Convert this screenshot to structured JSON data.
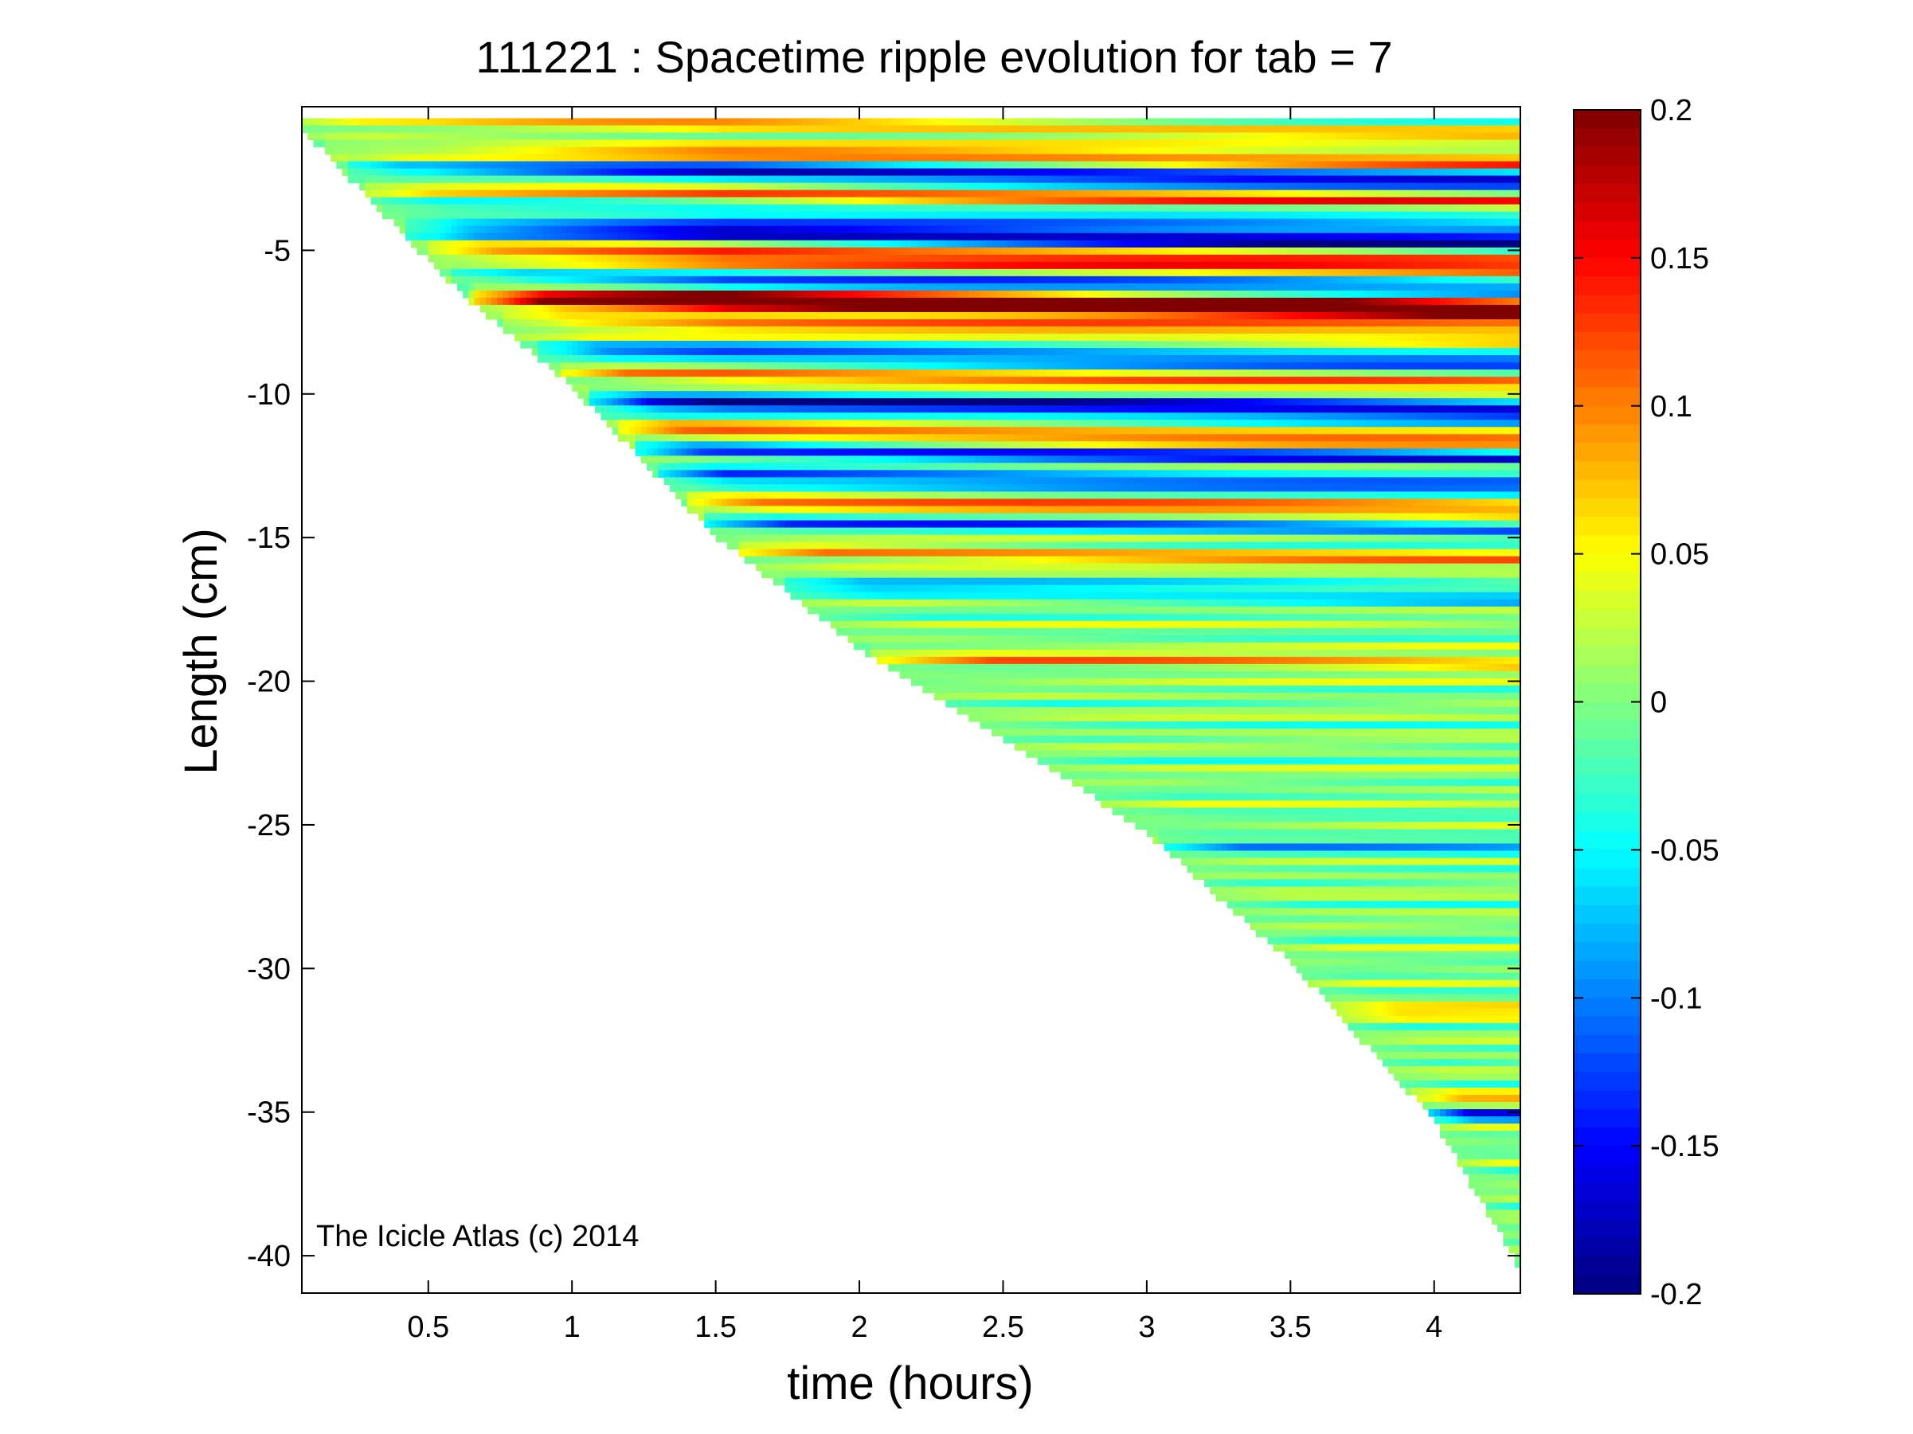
{
  "chart_data": {
    "type": "heatmap",
    "title": "111221 : Spacetime ripple evolution for tab = 7",
    "xlabel": "time (hours)",
    "ylabel": "Length (cm)",
    "annotation": "The Icicle Atlas (c) 2014",
    "xlim": [
      0.06,
      4.3
    ],
    "ylim": [
      -41.3,
      0
    ],
    "xticks": [
      0.5,
      1,
      1.5,
      2,
      2.5,
      3,
      3.5,
      4
    ],
    "xtick_labels": [
      "0.5",
      "1",
      "1.5",
      "2",
      "2.5",
      "3",
      "3.5",
      "4"
    ],
    "yticks": [
      -5,
      -10,
      -15,
      -20,
      -25,
      -30,
      -35,
      -40
    ],
    "ytick_labels": [
      "-5",
      "-10",
      "-15",
      "-20",
      "-25",
      "-30",
      "-35",
      "-40"
    ],
    "colorbar": {
      "colormap": "jet",
      "clim": [
        -0.2,
        0.2
      ],
      "ticks": [
        0.2,
        0.15,
        0.1,
        0.05,
        0,
        -0.05,
        -0.1,
        -0.15,
        -0.2
      ],
      "tick_labels": [
        "0.2",
        "0.15",
        "0.1",
        "0.05",
        "0",
        "-0.05",
        "-0.1",
        "-0.15",
        "-0.2"
      ]
    },
    "growth_front": {
      "time_hours": [
        0.06,
        0.6,
        1.0,
        1.5,
        2.0,
        2.5,
        3.0,
        3.5,
        4.0,
        4.3
      ],
      "length_cm": [
        -0.5,
        -6.1,
        -9.5,
        -14.7,
        -18.6,
        -21.7,
        -25.0,
        -29.5,
        -35.0,
        -40.2
      ]
    },
    "features": [
      {
        "length_cm": -0.5,
        "sign": 1,
        "amplitude": 0.08,
        "width_cm": 0.25
      },
      {
        "length_cm": -1.4,
        "sign": 1,
        "amplitude": 0.12,
        "width_cm": 0.3
      },
      {
        "length_cm": -2.1,
        "sign": -1,
        "amplitude": 0.17,
        "width_cm": 0.35
      },
      {
        "length_cm": -2.8,
        "sign": 1,
        "amplitude": 0.12,
        "width_cm": 0.3
      },
      {
        "length_cm": -3.5,
        "sign": -1,
        "amplitude": 0.08,
        "width_cm": 0.3
      },
      {
        "length_cm": -4.2,
        "sign": -1,
        "amplitude": 0.2,
        "width_cm": 0.35
      },
      {
        "length_cm": -5.0,
        "sign": 1,
        "amplitude": 0.16,
        "width_cm": 0.4
      },
      {
        "length_cm": -5.9,
        "sign": -1,
        "amplitude": 0.14,
        "width_cm": 0.35
      },
      {
        "length_cm": -6.6,
        "sign": 1,
        "amplitude": 0.17,
        "width_cm": 0.4
      },
      {
        "length_cm": -7.4,
        "sign": 1,
        "amplitude": 0.1,
        "width_cm": 0.3
      },
      {
        "length_cm": -8.4,
        "sign": -1,
        "amplitude": 0.13,
        "width_cm": 0.3
      },
      {
        "length_cm": -9.2,
        "sign": 1,
        "amplitude": 0.11,
        "width_cm": 0.3
      },
      {
        "length_cm": -10.1,
        "sign": -1,
        "amplitude": 0.18,
        "width_cm": 0.35
      },
      {
        "length_cm": -11.2,
        "sign": 1,
        "amplitude": 0.13,
        "width_cm": 0.35
      },
      {
        "length_cm": -11.7,
        "sign": -1,
        "amplitude": 0.16,
        "width_cm": 0.3
      },
      {
        "length_cm": -12.7,
        "sign": -1,
        "amplitude": 0.13,
        "width_cm": 0.3
      },
      {
        "length_cm": -13.6,
        "sign": 1,
        "amplitude": 0.12,
        "width_cm": 0.3
      },
      {
        "length_cm": -14.2,
        "sign": -1,
        "amplitude": 0.11,
        "width_cm": 0.3
      },
      {
        "length_cm": -15.3,
        "sign": 1,
        "amplitude": 0.09,
        "width_cm": 0.3
      },
      {
        "length_cm": -16.5,
        "sign": -1,
        "amplitude": 0.08,
        "width_cm": 0.3
      },
      {
        "length_cm": -18.9,
        "sign": 1,
        "amplitude": 0.08,
        "width_cm": 0.3
      },
      {
        "length_cm": -25.3,
        "sign": -1,
        "amplitude": 0.07,
        "width_cm": 0.3
      },
      {
        "length_cm": -31.0,
        "sign": 1,
        "amplitude": 0.07,
        "width_cm": 0.3
      },
      {
        "length_cm": -34.1,
        "sign": 1,
        "amplitude": 0.1,
        "width_cm": 0.3
      },
      {
        "length_cm": -34.5,
        "sign": -1,
        "amplitude": 0.17,
        "width_cm": 0.25
      },
      {
        "length_cm": -6.5,
        "sign": 1,
        "amplitude": 0.2,
        "width_cm": 0.3
      }
    ],
    "grid": false,
    "legend": "none"
  }
}
